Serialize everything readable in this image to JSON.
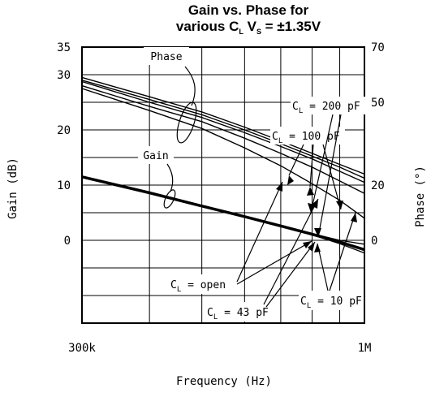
{
  "chart_data": {
    "type": "line",
    "title_line1": "Gain vs. Phase for",
    "title_line2": {
      "prefix": "various C",
      "sub1": "L",
      "mid": " V",
      "sub2": "S",
      "suffix": " = ±1.35V"
    },
    "xlabel": "Frequency (Hz)",
    "ylabel": "Gain (dB)",
    "y2label": "Phase (°)",
    "x_scale": "log",
    "xlim": [
      300000,
      1000000
    ],
    "x_tick_labels": [
      "300k",
      "1M"
    ],
    "ylim": [
      -15,
      35
    ],
    "y_ticks": [
      35,
      30,
      20,
      10,
      0
    ],
    "y2lim": [
      -30,
      70
    ],
    "y2_ticks": [
      70,
      50,
      20,
      0
    ],
    "grid": true,
    "annotations": {
      "phase": "Phase",
      "gain": "Gain",
      "c200": {
        "pre": "C",
        "sub": "L",
        "post": " = 200 pF"
      },
      "c100": {
        "pre": "C",
        "sub": "L",
        "post": " = 100 pF"
      },
      "copen": {
        "pre": "C",
        "sub": "L",
        "post": " = open"
      },
      "c43": {
        "pre": "C",
        "sub": "L",
        "post": " = 43 pF"
      },
      "c10": {
        "pre": "C",
        "sub": "L",
        "post": " = 10 pF"
      }
    },
    "series": [
      {
        "group": "phase",
        "x": [
          300000,
          400000,
          500000,
          600000,
          700000,
          800000,
          900000,
          1000000
        ],
        "y2": [
          59,
          52,
          46.5,
          41,
          36,
          31.5,
          27.5,
          24
        ]
      },
      {
        "group": "phase",
        "x": [
          300000,
          400000,
          500000,
          600000,
          700000,
          800000,
          900000,
          1000000
        ],
        "y2": [
          58,
          51,
          45.5,
          40,
          35,
          30.5,
          26.5,
          22.5
        ]
      },
      {
        "group": "phase",
        "x": [
          300000,
          400000,
          500000,
          600000,
          700000,
          800000,
          900000,
          1000000
        ],
        "y2": [
          57.5,
          50,
          44.5,
          39,
          34,
          29.5,
          25,
          21
        ]
      },
      {
        "group": "phase",
        "x": [
          300000,
          400000,
          500000,
          600000,
          700000,
          800000,
          900000,
          1000000
        ],
        "y2": [
          56,
          48.5,
          43,
          37,
          31.5,
          26.5,
          21.5,
          17
        ]
      },
      {
        "group": "phase",
        "x": [
          300000,
          400000,
          500000,
          600000,
          700000,
          800000,
          900000,
          1000000
        ],
        "y2": [
          55,
          47,
          40.5,
          33.5,
          27,
          20.5,
          14.5,
          8
        ]
      },
      {
        "group": "gain",
        "width": 3.5,
        "x": [
          300000,
          400000,
          500000,
          600000,
          700000,
          800000,
          900000,
          1000000
        ],
        "y": [
          11.5,
          8.6,
          6.2,
          4.3,
          2.6,
          1.1,
          -0.3,
          -1.7
        ]
      },
      {
        "group": "gain",
        "width": 1.3,
        "x": [
          300000,
          400000,
          500000,
          600000,
          700000,
          800000,
          900000,
          1000000
        ],
        "y": [
          11.5,
          8.6,
          6.2,
          4.3,
          2.6,
          1.2,
          0,
          -0.7
        ]
      },
      {
        "group": "gain",
        "width": 1.3,
        "x": [
          300000,
          400000,
          500000,
          600000,
          700000,
          800000,
          900000,
          1000000
        ],
        "y": [
          11.5,
          8.6,
          6.2,
          4.3,
          2.6,
          1.0,
          -0.6,
          -2.3
        ]
      }
    ]
  }
}
